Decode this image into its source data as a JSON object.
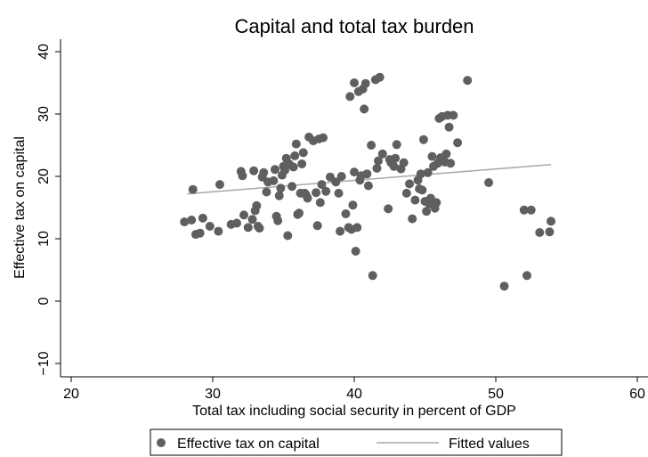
{
  "chart_data": {
    "type": "scatter",
    "title": "Capital and total tax burden",
    "xlabel": "Total tax including social security in percent of GDP",
    "ylabel": "Effective tax on capital",
    "xlim": [
      20,
      60
    ],
    "ylim": [
      -10,
      40
    ],
    "x_ticks": [
      20,
      30,
      40,
      50,
      60
    ],
    "x_tick_labels": [
      "20",
      "30",
      "40",
      "50",
      "60"
    ],
    "y_ticks": [
      -10,
      0,
      10,
      20,
      30,
      40
    ],
    "y_tick_labels": [
      "−10",
      "0",
      "10",
      "20",
      "30",
      "40"
    ],
    "grid": false,
    "legend_position": "bottom",
    "colors": {
      "points": "#5f5f5f",
      "fitted": "#a8a8a8",
      "frame": "#000000"
    },
    "series": [
      {
        "name": "Effective tax on capital",
        "kind": "scatter",
        "points": [
          [
            28.0,
            12.7
          ],
          [
            28.5,
            13.0
          ],
          [
            28.6,
            17.9
          ],
          [
            28.8,
            10.7
          ],
          [
            29.1,
            10.9
          ],
          [
            29.3,
            13.3
          ],
          [
            29.8,
            12.0
          ],
          [
            30.4,
            11.2
          ],
          [
            30.5,
            18.7
          ],
          [
            31.3,
            12.3
          ],
          [
            31.7,
            12.5
          ],
          [
            32.0,
            20.8
          ],
          [
            32.1,
            20.1
          ],
          [
            32.2,
            13.8
          ],
          [
            32.5,
            11.8
          ],
          [
            32.8,
            13.1
          ],
          [
            32.9,
            20.9
          ],
          [
            33.0,
            14.5
          ],
          [
            33.1,
            15.3
          ],
          [
            33.2,
            12.0
          ],
          [
            33.3,
            11.7
          ],
          [
            33.5,
            19.9
          ],
          [
            33.6,
            20.6
          ],
          [
            33.8,
            17.5
          ],
          [
            33.9,
            19.1
          ],
          [
            34.3,
            19.3
          ],
          [
            34.4,
            21.1
          ],
          [
            34.5,
            13.6
          ],
          [
            34.6,
            12.9
          ],
          [
            34.7,
            16.9
          ],
          [
            34.8,
            18.1
          ],
          [
            34.9,
            20.2
          ],
          [
            35.0,
            21.6
          ],
          [
            35.1,
            21.0
          ],
          [
            35.2,
            22.9
          ],
          [
            35.3,
            10.5
          ],
          [
            35.4,
            22.0
          ],
          [
            35.6,
            18.4
          ],
          [
            35.7,
            21.5
          ],
          [
            35.8,
            23.3
          ],
          [
            35.9,
            25.2
          ],
          [
            36.0,
            13.9
          ],
          [
            36.1,
            14.1
          ],
          [
            36.2,
            17.3
          ],
          [
            36.3,
            22.0
          ],
          [
            36.4,
            23.8
          ],
          [
            36.5,
            17.3
          ],
          [
            36.6,
            17.0
          ],
          [
            36.7,
            16.5
          ],
          [
            36.8,
            26.3
          ],
          [
            37.1,
            25.7
          ],
          [
            37.3,
            17.4
          ],
          [
            37.4,
            12.1
          ],
          [
            37.5,
            26.0
          ],
          [
            37.6,
            15.8
          ],
          [
            37.7,
            18.7
          ],
          [
            37.8,
            26.2
          ],
          [
            38.0,
            17.6
          ],
          [
            38.3,
            19.9
          ],
          [
            38.7,
            19.1
          ],
          [
            38.9,
            17.3
          ],
          [
            39.0,
            11.2
          ],
          [
            39.1,
            20.0
          ],
          [
            39.4,
            14.0
          ],
          [
            39.6,
            11.8
          ],
          [
            39.7,
            32.8
          ],
          [
            39.8,
            11.5
          ],
          [
            39.9,
            15.4
          ],
          [
            40.0,
            20.7
          ],
          [
            40.1,
            8.0
          ],
          [
            40.2,
            11.8
          ],
          [
            40.0,
            35.0
          ],
          [
            40.3,
            33.6
          ],
          [
            40.4,
            19.4
          ],
          [
            40.5,
            20.1
          ],
          [
            40.6,
            34.0
          ],
          [
            40.7,
            30.8
          ],
          [
            40.8,
            34.9
          ],
          [
            40.9,
            20.4
          ],
          [
            41.0,
            18.5
          ],
          [
            41.2,
            25.0
          ],
          [
            41.3,
            4.1
          ],
          [
            41.5,
            35.5
          ],
          [
            41.6,
            21.3
          ],
          [
            41.7,
            22.5
          ],
          [
            41.8,
            35.9
          ],
          [
            42.0,
            23.6
          ],
          [
            42.4,
            14.8
          ],
          [
            42.5,
            22.7
          ],
          [
            42.6,
            22.2
          ],
          [
            42.8,
            21.6
          ],
          [
            42.9,
            22.9
          ],
          [
            43.0,
            25.1
          ],
          [
            43.3,
            21.2
          ],
          [
            43.5,
            22.2
          ],
          [
            43.7,
            17.3
          ],
          [
            43.9,
            18.8
          ],
          [
            44.1,
            13.2
          ],
          [
            44.3,
            16.2
          ],
          [
            44.5,
            19.4
          ],
          [
            44.6,
            18.0
          ],
          [
            44.7,
            20.4
          ],
          [
            44.8,
            17.8
          ],
          [
            44.9,
            25.9
          ],
          [
            45.0,
            16.0
          ],
          [
            45.1,
            14.4
          ],
          [
            45.2,
            20.6
          ],
          [
            45.3,
            15.6
          ],
          [
            45.4,
            16.5
          ],
          [
            45.5,
            23.2
          ],
          [
            45.6,
            21.6
          ],
          [
            45.7,
            14.9
          ],
          [
            45.8,
            15.8
          ],
          [
            45.9,
            22.1
          ],
          [
            46.0,
            29.3
          ],
          [
            46.1,
            23.0
          ],
          [
            46.2,
            29.6
          ],
          [
            46.3,
            22.6
          ],
          [
            46.4,
            22.3
          ],
          [
            46.5,
            23.6
          ],
          [
            46.6,
            29.8
          ],
          [
            46.7,
            27.9
          ],
          [
            46.8,
            22.1
          ],
          [
            47.0,
            29.8
          ],
          [
            47.3,
            25.4
          ],
          [
            48.0,
            35.4
          ],
          [
            49.5,
            19.0
          ],
          [
            50.6,
            2.4
          ],
          [
            52.0,
            14.6
          ],
          [
            52.2,
            4.1
          ],
          [
            52.5,
            14.6
          ],
          [
            53.1,
            11.0
          ],
          [
            53.8,
            11.1
          ],
          [
            53.9,
            12.8
          ]
        ]
      },
      {
        "name": "Fitted values",
        "kind": "line",
        "x": [
          28.2,
          53.9
        ],
        "y": [
          17.2,
          21.9
        ]
      }
    ]
  }
}
